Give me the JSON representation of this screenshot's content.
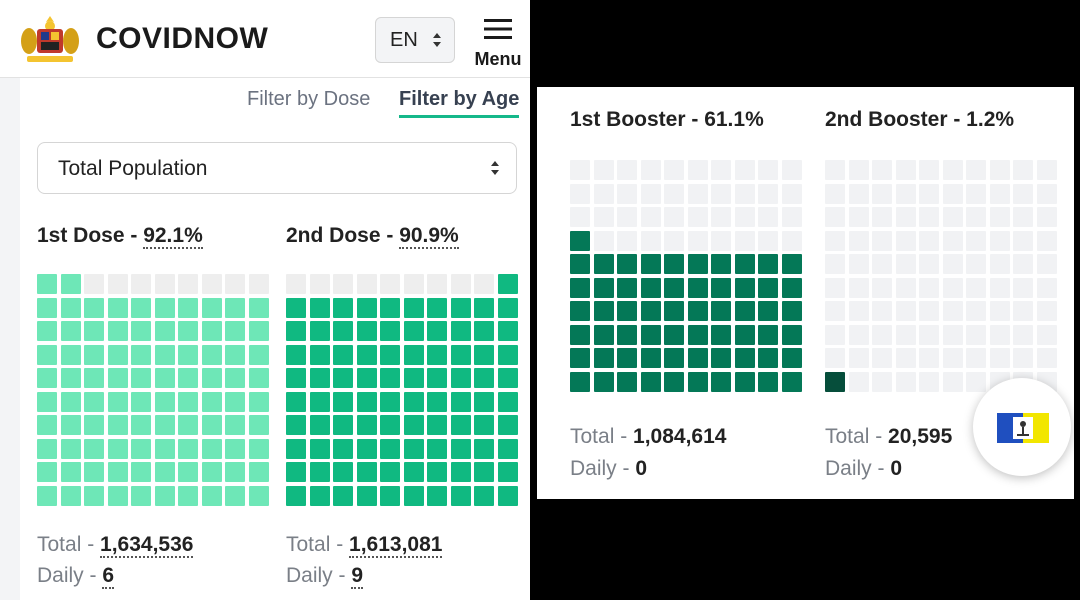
{
  "header": {
    "brand": "COVIDNOW",
    "language": "EN",
    "menu_label": "Menu"
  },
  "filters": {
    "by_dose": "Filter by Dose",
    "by_age": "Filter by Age",
    "active": "by_age"
  },
  "population_select": {
    "value": "Total Population"
  },
  "cards": [
    {
      "title": "1st Dose - ",
      "percent": "92.1%",
      "percent_value": 92.1,
      "total_label": "Total - ",
      "total": "1,634,536",
      "daily_label": "Daily - ",
      "daily": "6",
      "color": "#6ee7b7",
      "empty_color": "#eeeeee"
    },
    {
      "title": "2nd Dose - ",
      "percent": "90.9%",
      "percent_value": 90.9,
      "total_label": "Total - ",
      "total": "1,613,081",
      "daily_label": "Daily - ",
      "daily": "9",
      "color": "#10b981",
      "empty_color": "#eeeeee"
    }
  ],
  "booster_cards": [
    {
      "title": "1st Booster - 61.1%",
      "percent_value": 61.1,
      "total_label": "Total - ",
      "total": "1,084,614",
      "daily_label": "Daily - ",
      "daily": "0",
      "color": "#047857",
      "empty_color": "#f1f2f4"
    },
    {
      "title": "2nd Booster - 1.2%",
      "percent_value": 1.2,
      "total_label": "Total - ",
      "total": "20,595",
      "daily_label": "Daily - ",
      "daily": "0",
      "color": "#064e3b",
      "empty_color": "#f1f2f4"
    }
  ],
  "icons": {
    "logo": "coat-of-arms-icon",
    "flag": "state-flag-icon",
    "menu": "hamburger-menu-icon",
    "select": "updown-chevron-icon"
  }
}
